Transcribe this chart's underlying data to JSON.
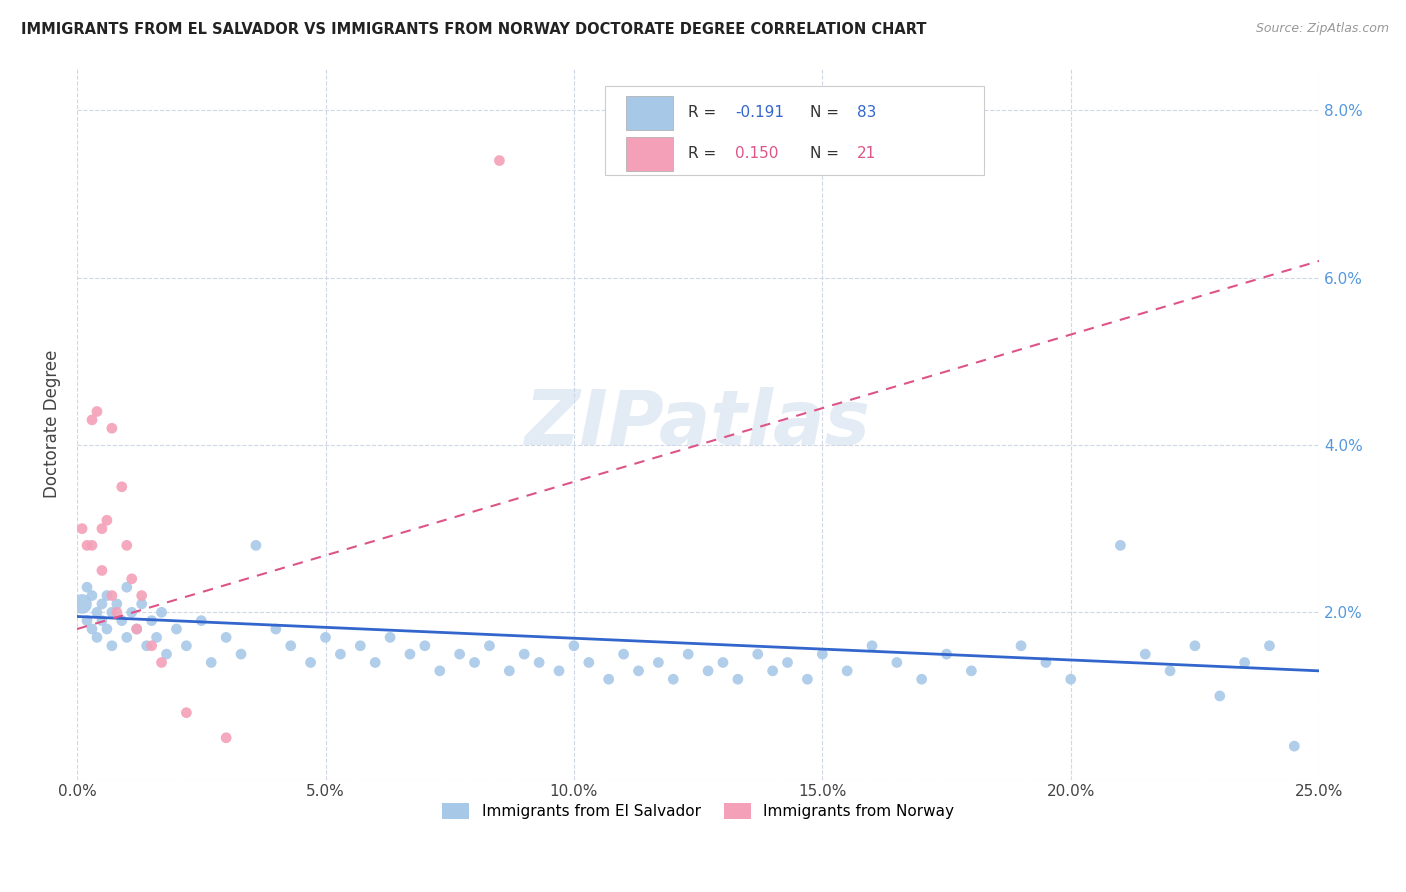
{
  "title": "IMMIGRANTS FROM EL SALVADOR VS IMMIGRANTS FROM NORWAY DOCTORATE DEGREE CORRELATION CHART",
  "source": "Source: ZipAtlas.com",
  "ylabel": "Doctorate Degree",
  "xlim": [
    0.0,
    0.25
  ],
  "ylim": [
    0.0,
    0.085
  ],
  "xticks": [
    0.0,
    0.05,
    0.1,
    0.15,
    0.2,
    0.25
  ],
  "yticks": [
    0.0,
    0.02,
    0.04,
    0.06,
    0.08
  ],
  "xtick_labels": [
    "0.0%",
    "5.0%",
    "10.0%",
    "15.0%",
    "20.0%",
    "25.0%"
  ],
  "ytick_labels_right": [
    "",
    "2.0%",
    "4.0%",
    "6.0%",
    "8.0%"
  ],
  "watermark": "ZIPatlas",
  "el_salvador_color": "#a8c8e8",
  "norway_color": "#f4a0b8",
  "el_salvador_line_color": "#3366cc",
  "norway_line_color": "#dd5588",
  "background_color": "#ffffff",
  "grid_color": "#d0d8e8",
  "el_salvador_x": [
    0.001,
    0.002,
    0.002,
    0.003,
    0.003,
    0.004,
    0.004,
    0.005,
    0.005,
    0.006,
    0.006,
    0.007,
    0.007,
    0.008,
    0.009,
    0.01,
    0.01,
    0.011,
    0.012,
    0.013,
    0.014,
    0.015,
    0.016,
    0.017,
    0.018,
    0.02,
    0.022,
    0.025,
    0.027,
    0.03,
    0.033,
    0.036,
    0.04,
    0.043,
    0.047,
    0.05,
    0.053,
    0.057,
    0.06,
    0.063,
    0.067,
    0.07,
    0.073,
    0.077,
    0.08,
    0.083,
    0.087,
    0.09,
    0.093,
    0.097,
    0.1,
    0.103,
    0.107,
    0.11,
    0.113,
    0.117,
    0.12,
    0.123,
    0.127,
    0.13,
    0.133,
    0.137,
    0.14,
    0.143,
    0.147,
    0.15,
    0.155,
    0.16,
    0.165,
    0.17,
    0.175,
    0.18,
    0.19,
    0.195,
    0.2,
    0.21,
    0.215,
    0.22,
    0.225,
    0.23,
    0.235,
    0.24,
    0.245
  ],
  "el_salvador_y": [
    0.021,
    0.019,
    0.023,
    0.018,
    0.022,
    0.02,
    0.017,
    0.021,
    0.019,
    0.022,
    0.018,
    0.02,
    0.016,
    0.021,
    0.019,
    0.023,
    0.017,
    0.02,
    0.018,
    0.021,
    0.016,
    0.019,
    0.017,
    0.02,
    0.015,
    0.018,
    0.016,
    0.019,
    0.014,
    0.017,
    0.015,
    0.028,
    0.018,
    0.016,
    0.014,
    0.017,
    0.015,
    0.016,
    0.014,
    0.017,
    0.015,
    0.016,
    0.013,
    0.015,
    0.014,
    0.016,
    0.013,
    0.015,
    0.014,
    0.013,
    0.016,
    0.014,
    0.012,
    0.015,
    0.013,
    0.014,
    0.012,
    0.015,
    0.013,
    0.014,
    0.012,
    0.015,
    0.013,
    0.014,
    0.012,
    0.015,
    0.013,
    0.016,
    0.014,
    0.012,
    0.015,
    0.013,
    0.016,
    0.014,
    0.012,
    0.028,
    0.015,
    0.013,
    0.016,
    0.01,
    0.014,
    0.016,
    0.004
  ],
  "el_salvador_sizes": [
    200,
    60,
    60,
    60,
    60,
    60,
    60,
    60,
    60,
    60,
    60,
    60,
    60,
    60,
    60,
    60,
    60,
    60,
    60,
    60,
    60,
    60,
    60,
    60,
    60,
    60,
    60,
    60,
    60,
    60,
    60,
    60,
    60,
    60,
    60,
    60,
    60,
    60,
    60,
    60,
    60,
    60,
    60,
    60,
    60,
    60,
    60,
    60,
    60,
    60,
    60,
    60,
    60,
    60,
    60,
    60,
    60,
    60,
    60,
    60,
    60,
    60,
    60,
    60,
    60,
    60,
    60,
    60,
    60,
    60,
    60,
    60,
    60,
    60,
    60,
    60,
    60,
    60,
    60,
    60,
    60,
    60,
    60
  ],
  "norway_x": [
    0.001,
    0.002,
    0.003,
    0.003,
    0.004,
    0.005,
    0.005,
    0.006,
    0.007,
    0.007,
    0.008,
    0.009,
    0.01,
    0.011,
    0.012,
    0.013,
    0.015,
    0.017,
    0.022,
    0.085,
    0.03
  ],
  "norway_y": [
    0.03,
    0.028,
    0.043,
    0.028,
    0.044,
    0.03,
    0.025,
    0.031,
    0.022,
    0.042,
    0.02,
    0.035,
    0.028,
    0.024,
    0.018,
    0.022,
    0.016,
    0.014,
    0.008,
    0.074,
    0.005
  ],
  "norway_sizes": [
    60,
    60,
    60,
    60,
    60,
    60,
    60,
    60,
    60,
    60,
    60,
    60,
    60,
    60,
    60,
    60,
    60,
    60,
    60,
    60,
    60
  ],
  "es_line_x0": 0.0,
  "es_line_x1": 0.25,
  "es_line_y0": 0.0195,
  "es_line_y1": 0.013,
  "no_line_x0": 0.0,
  "no_line_x1": 0.25,
  "no_line_y0": 0.018,
  "no_line_y1": 0.062,
  "legend_r_es": "-0.191",
  "legend_n_es": "83",
  "legend_r_no": "0.150",
  "legend_n_no": "21",
  "legend_label_es": "Immigrants from El Salvador",
  "legend_label_no": "Immigrants from Norway"
}
